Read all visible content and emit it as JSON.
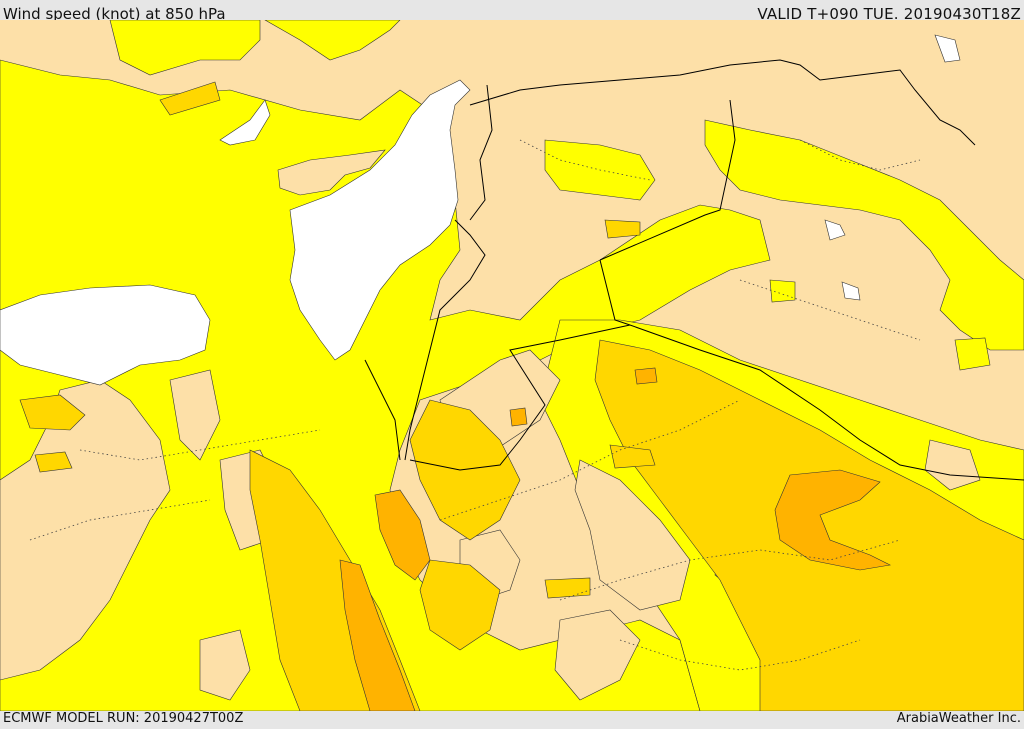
{
  "header": {
    "title": "Wind speed (knot) at 850 hPa",
    "valid": "VALID T+090 TUE. 20190430T18Z"
  },
  "footer": {
    "model_run": "ECMWF MODEL RUN: 20190427T00Z",
    "credit": "ArabiaWeather Inc."
  },
  "colors": {
    "background_band": "#e6e6e6",
    "sea": "#ffffff",
    "speed_low": "#fde0a8",
    "speed_mid": "#ffff00",
    "speed_high": "#ffd700",
    "speed_higher": "#ffb300",
    "border": "#000000"
  }
}
